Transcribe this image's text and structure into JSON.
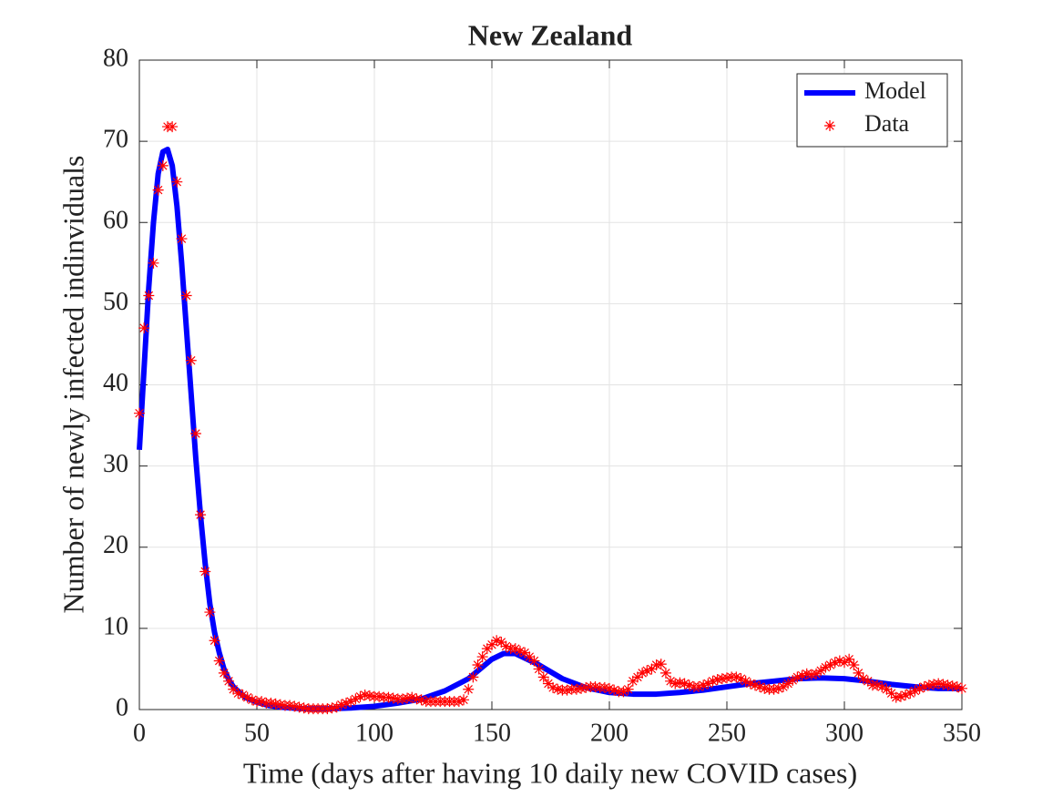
{
  "chart_data": {
    "type": "line",
    "title": "New Zealand",
    "x_label": "Time (days after having 10 daily new COVID cases)",
    "y_label": "Number of newly infected indinviduals",
    "xlim": [
      0,
      350
    ],
    "xticks": [
      0,
      50,
      100,
      150,
      200,
      250,
      300,
      350
    ],
    "ylim": [
      0,
      80
    ],
    "yticks": [
      0,
      10,
      20,
      30,
      40,
      50,
      60,
      70,
      80
    ],
    "grid": true,
    "legend": "upper right",
    "series": [
      {
        "name": "Model",
        "color": "#0000ff",
        "style": "line",
        "x": [
          0,
          2,
          4,
          6,
          8,
          10,
          12,
          14,
          16,
          18,
          20,
          22,
          24,
          26,
          28,
          30,
          32,
          34,
          36,
          38,
          40,
          45,
          50,
          55,
          60,
          70,
          80,
          90,
          100,
          110,
          120,
          130,
          140,
          150,
          155,
          160,
          170,
          180,
          190,
          200,
          210,
          220,
          230,
          240,
          250,
          260,
          270,
          280,
          290,
          300,
          310,
          320,
          330,
          340,
          350
        ],
        "values": [
          32,
          42,
          52,
          60,
          66,
          68.7,
          69,
          67,
          62,
          55,
          47,
          39,
          31,
          24,
          18,
          13,
          9.5,
          7,
          5,
          3.7,
          2.8,
          1.5,
          0.9,
          0.5,
          0.3,
          0.1,
          0.1,
          0.2,
          0.4,
          0.8,
          1.3,
          2.3,
          3.8,
          6.2,
          6.9,
          6.9,
          5.5,
          3.8,
          2.7,
          2.1,
          1.9,
          1.9,
          2.1,
          2.4,
          2.8,
          3.2,
          3.5,
          3.8,
          3.9,
          3.8,
          3.5,
          3.1,
          2.8,
          2.6,
          2.6
        ]
      },
      {
        "name": "Data",
        "color": "#ff0000",
        "style": "marker",
        "x": [
          0,
          2,
          4,
          6,
          8,
          10,
          12,
          14,
          16,
          18,
          20,
          22,
          24,
          26,
          28,
          30,
          32,
          34,
          36,
          38,
          40,
          42,
          44,
          46,
          48,
          50,
          52,
          54,
          56,
          58,
          60,
          62,
          64,
          66,
          68,
          70,
          72,
          74,
          76,
          78,
          80,
          82,
          84,
          86,
          88,
          90,
          92,
          94,
          96,
          98,
          100,
          102,
          104,
          106,
          108,
          110,
          112,
          114,
          116,
          118,
          120,
          122,
          124,
          126,
          128,
          130,
          132,
          134,
          136,
          138,
          140,
          142,
          144,
          146,
          148,
          150,
          152,
          154,
          156,
          158,
          160,
          162,
          164,
          166,
          168,
          170,
          172,
          174,
          176,
          178,
          180,
          182,
          184,
          186,
          188,
          190,
          192,
          194,
          196,
          198,
          200,
          202,
          204,
          206,
          208,
          210,
          212,
          214,
          216,
          218,
          220,
          222,
          224,
          226,
          228,
          230,
          232,
          234,
          236,
          238,
          240,
          242,
          244,
          246,
          248,
          250,
          252,
          254,
          256,
          258,
          260,
          262,
          264,
          266,
          268,
          270,
          272,
          274,
          276,
          278,
          280,
          282,
          284,
          286,
          288,
          290,
          292,
          294,
          296,
          298,
          300,
          302,
          304,
          306,
          308,
          310,
          312,
          314,
          316,
          318,
          320,
          322,
          324,
          326,
          328,
          330,
          332,
          334,
          336,
          338,
          340,
          342,
          344,
          346,
          348,
          350
        ],
        "values": [
          36.5,
          47,
          51,
          55,
          64,
          67,
          71.8,
          71.8,
          65,
          58,
          51,
          43,
          34,
          24,
          17,
          12,
          8.5,
          6,
          4.5,
          3.5,
          2.5,
          2,
          1.8,
          1.5,
          1.2,
          1,
          1,
          0.8,
          0.8,
          0.7,
          0.6,
          0.5,
          0.5,
          0.4,
          0.3,
          0.2,
          0.1,
          0.1,
          0.1,
          0.1,
          0.1,
          0.2,
          0.3,
          0.6,
          0.8,
          1,
          1.3,
          1.6,
          1.8,
          1.7,
          1.6,
          1.6,
          1.5,
          1.5,
          1.4,
          1.3,
          1.3,
          1.4,
          1.5,
          1.3,
          1.2,
          1,
          1,
          1,
          1,
          1,
          1,
          1,
          1,
          1.2,
          2.5,
          4,
          5.5,
          6.5,
          7.5,
          8,
          8.5,
          8.3,
          7.8,
          7.5,
          7.5,
          7.2,
          7,
          6.5,
          6,
          5,
          4,
          3.2,
          2.7,
          2.5,
          2.4,
          2.4,
          2.5,
          2.5,
          2.6,
          2.7,
          2.8,
          2.8,
          2.7,
          2.7,
          2.6,
          2.4,
          2.2,
          2.2,
          2.5,
          3.5,
          4,
          4.5,
          4.8,
          5,
          5.5,
          5.6,
          4.5,
          3.5,
          3.2,
          3.3,
          3.2,
          3,
          2.8,
          2.8,
          3,
          3.2,
          3.5,
          3.7,
          3.8,
          3.9,
          4,
          4,
          3.8,
          3.5,
          3.2,
          3,
          2.8,
          2.6,
          2.5,
          2.5,
          2.6,
          2.8,
          3.2,
          3.6,
          4,
          4.2,
          4.4,
          4.3,
          4.4,
          4.8,
          5.2,
          5.5,
          5.8,
          6,
          5.8,
          6.2,
          5.5,
          4.5,
          3.8,
          3.5,
          3,
          3,
          2.8,
          2.5,
          2,
          1.5,
          1.6,
          1.8,
          2,
          2.3,
          2.6,
          2.8,
          3,
          3.1,
          3.2,
          3.1,
          3,
          2.9,
          2.8,
          2.6
        ]
      }
    ]
  }
}
